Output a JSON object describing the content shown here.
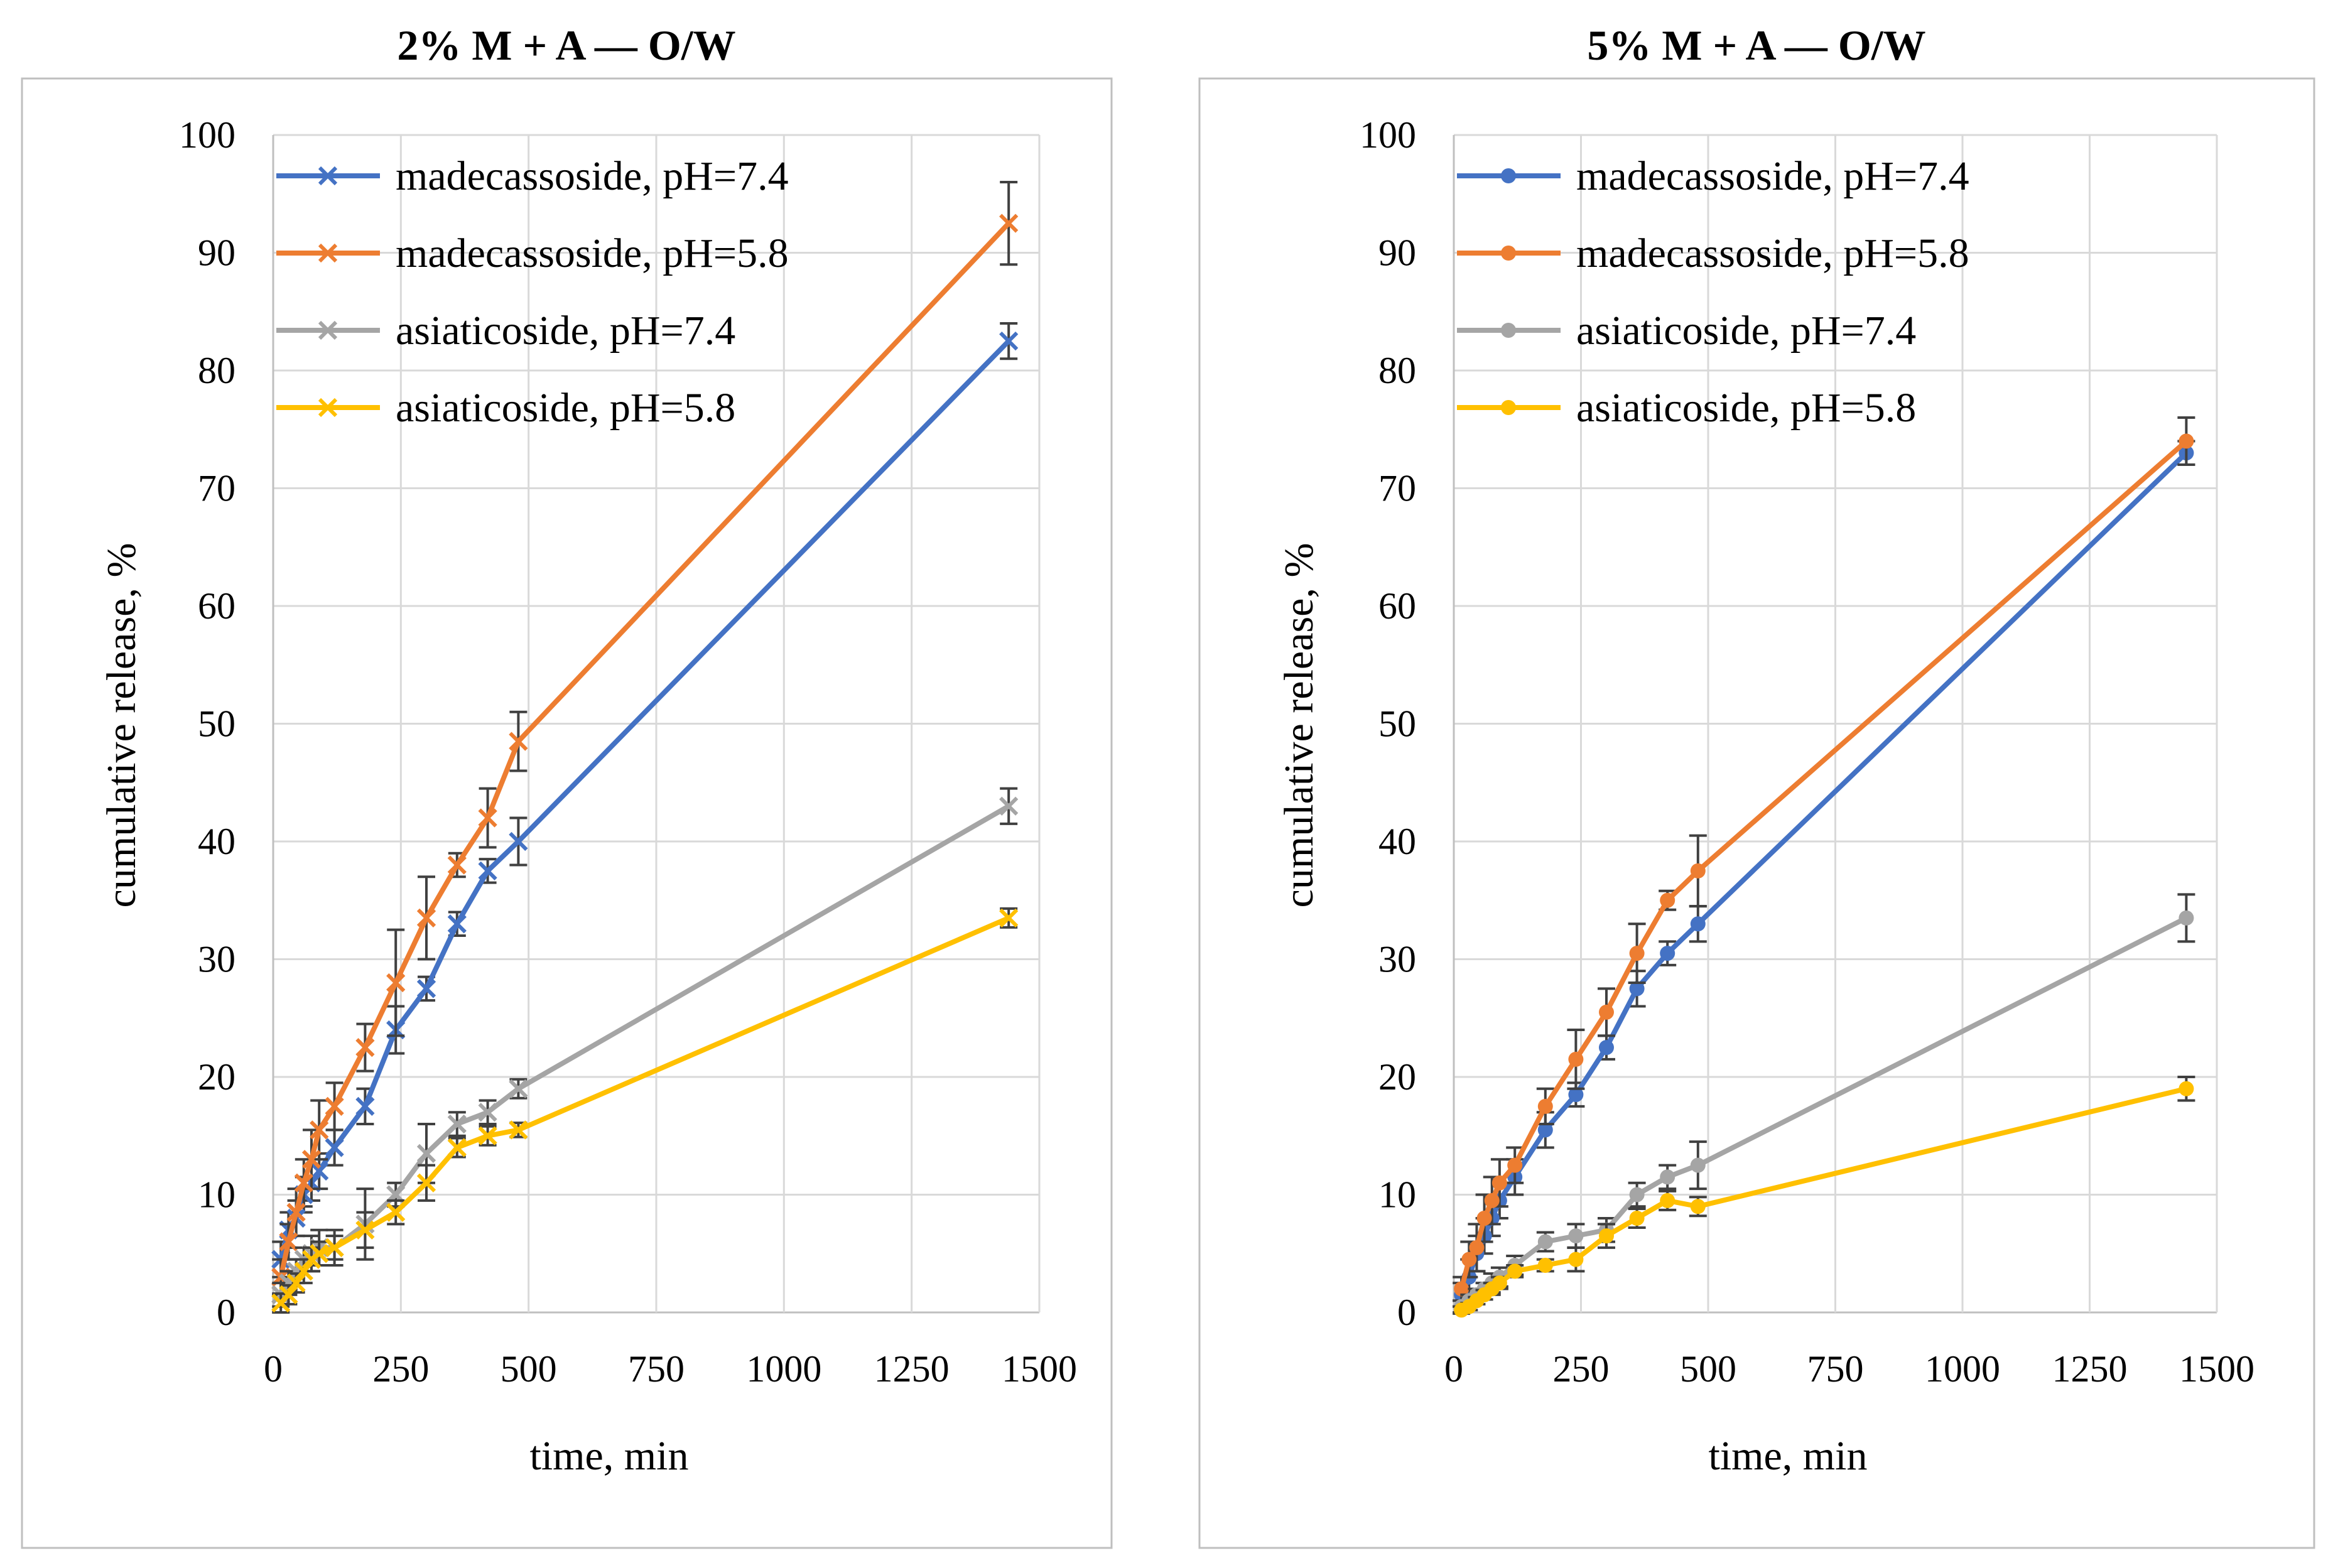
{
  "chart_data": [
    {
      "type": "line",
      "title": "2% M + A — O/W",
      "xlabel": "time, min",
      "ylabel": "cumulative release, %",
      "xlim": [
        0,
        1500
      ],
      "ylim": [
        0,
        100
      ],
      "xticks": [
        "0",
        "250",
        "500",
        "750",
        "1000",
        "1250",
        "1500"
      ],
      "yticks": [
        "0",
        "10",
        "20",
        "30",
        "40",
        "50",
        "60",
        "70",
        "80",
        "90",
        "100"
      ],
      "marker": "x",
      "legend_position": "top-left",
      "series": [
        {
          "name": "madecassoside, pH=7.4",
          "color": "#4472c4",
          "x": [
            15,
            30,
            45,
            60,
            75,
            90,
            120,
            180,
            240,
            300,
            360,
            420,
            480,
            1440
          ],
          "y": [
            4.5,
            7.0,
            8.0,
            10.0,
            11.0,
            12.0,
            14.0,
            17.5,
            24.0,
            27.5,
            33.0,
            37.5,
            40.0,
            82.5
          ],
          "err": [
            1.5,
            1.5,
            1.5,
            1.5,
            1.5,
            1.5,
            1.5,
            1.5,
            2.0,
            1.0,
            1.0,
            1.0,
            2.0,
            1.5
          ]
        },
        {
          "name": "madecassoside, pH=5.8",
          "color": "#ed7d31",
          "x": [
            15,
            30,
            45,
            60,
            75,
            90,
            120,
            180,
            240,
            300,
            360,
            420,
            480,
            1440
          ],
          "y": [
            3.0,
            6.0,
            8.5,
            11.0,
            13.0,
            15.5,
            17.5,
            22.5,
            28.0,
            33.5,
            38.0,
            42.0,
            48.5,
            92.5
          ],
          "err": [
            1.5,
            1.5,
            2.0,
            2.0,
            2.5,
            2.5,
            2.0,
            2.0,
            4.5,
            3.5,
            1.0,
            2.5,
            2.5,
            3.5
          ]
        },
        {
          "name": "asiaticoside, pH=7.4",
          "color": "#a5a5a5",
          "x": [
            15,
            30,
            45,
            60,
            75,
            90,
            120,
            180,
            240,
            300,
            360,
            420,
            480,
            1440
          ],
          "y": [
            1.5,
            2.5,
            3.5,
            4.5,
            5.0,
            5.5,
            5.5,
            7.5,
            10.0,
            13.5,
            16.0,
            17.0,
            19.0,
            43.0
          ],
          "err": [
            1.0,
            1.0,
            1.0,
            1.0,
            1.5,
            1.5,
            1.5,
            3.0,
            1.0,
            2.5,
            1.0,
            1.0,
            0.8,
            1.5
          ]
        },
        {
          "name": "asiaticoside, pH=5.8",
          "color": "#ffc000",
          "x": [
            15,
            30,
            45,
            60,
            75,
            90,
            120,
            180,
            240,
            300,
            360,
            420,
            480,
            1440
          ],
          "y": [
            0.8,
            1.5,
            2.5,
            3.5,
            4.5,
            5.0,
            5.5,
            7.0,
            8.5,
            11.0,
            14.0,
            15.0,
            15.5,
            33.5
          ],
          "err": [
            0.8,
            0.8,
            0.8,
            1.0,
            1.0,
            1.0,
            1.0,
            1.5,
            1.0,
            1.5,
            0.8,
            0.8,
            0.6,
            0.8
          ]
        }
      ]
    },
    {
      "type": "line",
      "title": "5% M + A — O/W",
      "xlabel": "time, min",
      "ylabel": "cumulative release, %",
      "xlim": [
        0,
        1500
      ],
      "ylim": [
        0,
        100
      ],
      "xticks": [
        "0",
        "250",
        "500",
        "750",
        "1000",
        "1250",
        "1500"
      ],
      "yticks": [
        "0",
        "10",
        "20",
        "30",
        "40",
        "50",
        "60",
        "70",
        "80",
        "90",
        "100"
      ],
      "marker": "circle",
      "legend_position": "top-left",
      "series": [
        {
          "name": "madecassoside, pH=7.4",
          "color": "#4472c4",
          "x": [
            15,
            30,
            45,
            60,
            75,
            90,
            120,
            180,
            240,
            300,
            360,
            420,
            480,
            1440
          ],
          "y": [
            1.5,
            3.0,
            5.0,
            6.5,
            8.0,
            9.5,
            11.5,
            15.5,
            18.5,
            22.5,
            27.5,
            30.5,
            33.0,
            73.0
          ],
          "err": [
            1.0,
            1.5,
            1.5,
            1.5,
            1.5,
            1.5,
            1.5,
            1.5,
            1.0,
            1.0,
            1.5,
            1.0,
            1.5,
            1.0
          ]
        },
        {
          "name": "madecassoside, pH=5.8",
          "color": "#ed7d31",
          "x": [
            15,
            30,
            45,
            60,
            75,
            90,
            120,
            180,
            240,
            300,
            360,
            420,
            480,
            1440
          ],
          "y": [
            2.0,
            4.5,
            5.5,
            8.0,
            9.5,
            11.0,
            12.5,
            17.5,
            21.5,
            25.5,
            30.5,
            35.0,
            37.5,
            74.0
          ],
          "err": [
            1.0,
            1.5,
            2.0,
            2.0,
            2.0,
            2.0,
            1.5,
            1.5,
            2.5,
            2.0,
            2.5,
            0.8,
            3.0,
            2.0
          ]
        },
        {
          "name": "asiaticoside, pH=7.4",
          "color": "#a5a5a5",
          "x": [
            15,
            30,
            45,
            60,
            75,
            90,
            120,
            180,
            240,
            300,
            360,
            420,
            480,
            1440
          ],
          "y": [
            0.5,
            1.0,
            1.5,
            2.0,
            2.5,
            3.0,
            4.0,
            6.0,
            6.5,
            7.0,
            10.0,
            11.5,
            12.5,
            33.5
          ],
          "err": [
            0.5,
            0.5,
            0.5,
            0.5,
            0.8,
            0.8,
            0.8,
            0.8,
            1.0,
            1.0,
            1.0,
            1.0,
            2.0,
            2.0
          ]
        },
        {
          "name": "asiaticoside, pH=5.8",
          "color": "#ffc000",
          "x": [
            15,
            30,
            45,
            60,
            75,
            90,
            120,
            180,
            240,
            300,
            360,
            420,
            480,
            1440
          ],
          "y": [
            0.2,
            0.5,
            1.0,
            1.5,
            2.0,
            2.5,
            3.5,
            4.0,
            4.5,
            6.5,
            8.0,
            9.5,
            9.0,
            19.0
          ],
          "err": [
            0.3,
            0.3,
            0.3,
            0.4,
            0.5,
            0.5,
            0.5,
            0.5,
            1.0,
            1.0,
            0.8,
            0.8,
            0.8,
            1.0
          ]
        }
      ]
    }
  ]
}
